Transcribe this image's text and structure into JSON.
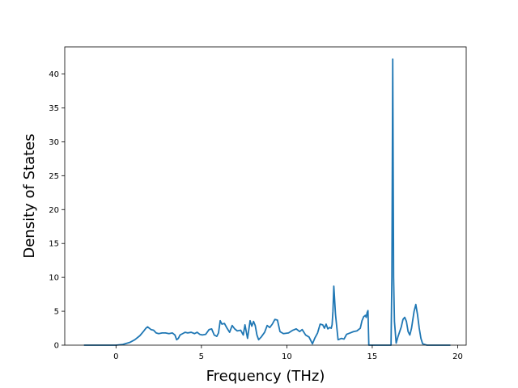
{
  "chart_data": {
    "type": "line",
    "title": "",
    "xlabel": "Frequency (THz)",
    "ylabel": "Density of States",
    "xlim": [
      -3.0,
      20.5
    ],
    "ylim": [
      0,
      44
    ],
    "xticks": [
      0,
      5,
      10,
      15,
      20
    ],
    "yticks": [
      0,
      5,
      10,
      15,
      20,
      25,
      30,
      35,
      40
    ],
    "grid": false,
    "series": [
      {
        "color": "#1f77b4",
        "x": [
          -1.85,
          -1.0,
          0.0,
          0.4,
          0.8,
          1.1,
          1.4,
          1.6,
          1.75,
          1.85,
          1.95,
          2.05,
          2.2,
          2.35,
          2.5,
          2.7,
          2.9,
          3.1,
          3.3,
          3.45,
          3.55,
          3.65,
          3.75,
          3.9,
          4.05,
          4.2,
          4.4,
          4.6,
          4.75,
          4.9,
          5.05,
          5.25,
          5.45,
          5.6,
          5.75,
          5.9,
          6.0,
          6.1,
          6.2,
          6.35,
          6.5,
          6.65,
          6.8,
          6.95,
          7.1,
          7.3,
          7.45,
          7.55,
          7.7,
          7.85,
          7.95,
          8.05,
          8.15,
          8.25,
          8.35,
          8.5,
          8.7,
          8.85,
          9.0,
          9.15,
          9.3,
          9.45,
          9.6,
          9.8,
          10.1,
          10.35,
          10.55,
          10.75,
          10.9,
          11.1,
          11.3,
          11.5,
          11.65,
          11.8,
          11.95,
          12.1,
          12.2,
          12.3,
          12.4,
          12.5,
          12.6,
          12.65,
          12.7,
          12.75,
          12.85,
          13.0,
          13.2,
          13.35,
          13.5,
          13.7,
          13.9,
          14.1,
          14.3,
          14.4,
          14.5,
          14.6,
          14.65,
          14.7,
          14.75,
          14.8,
          15.0,
          15.5,
          16.0,
          16.1,
          16.15,
          16.2,
          16.25,
          16.3,
          16.4,
          16.5,
          16.7,
          16.8,
          16.9,
          17.0,
          17.1,
          17.2,
          17.3,
          17.45,
          17.55,
          17.65,
          17.75,
          17.85,
          17.95,
          18.2,
          18.6,
          19.0,
          19.55
        ],
        "y": [
          0.0,
          0.0,
          0.0,
          0.1,
          0.4,
          0.8,
          1.4,
          2.0,
          2.5,
          2.7,
          2.5,
          2.3,
          2.2,
          1.8,
          1.7,
          1.8,
          1.8,
          1.7,
          1.8,
          1.5,
          0.8,
          1.0,
          1.5,
          1.7,
          1.9,
          1.8,
          1.9,
          1.7,
          1.9,
          1.6,
          1.5,
          1.6,
          2.3,
          2.4,
          1.5,
          1.3,
          1.8,
          3.6,
          3.1,
          3.2,
          2.5,
          1.9,
          2.9,
          2.4,
          2.1,
          2.2,
          1.5,
          3.0,
          1.0,
          3.6,
          2.8,
          3.5,
          2.9,
          1.5,
          0.8,
          1.2,
          1.9,
          2.9,
          2.6,
          3.1,
          3.8,
          3.7,
          2.0,
          1.7,
          1.8,
          2.2,
          2.4,
          2.0,
          2.3,
          1.5,
          1.2,
          0.2,
          1.1,
          1.8,
          3.1,
          3.0,
          2.5,
          3.1,
          2.4,
          2.6,
          2.5,
          3.0,
          5.0,
          8.7,
          4.5,
          0.8,
          1.0,
          0.9,
          1.6,
          1.8,
          2.0,
          2.1,
          2.5,
          3.6,
          4.2,
          4.4,
          4.1,
          4.8,
          5.1,
          0.0,
          0.0,
          0.0,
          0.0,
          0.0,
          10.0,
          42.2,
          10.0,
          3.5,
          0.3,
          1.2,
          2.7,
          3.8,
          4.1,
          3.5,
          2.0,
          1.5,
          2.5,
          5.0,
          6.0,
          4.5,
          2.5,
          1.0,
          0.2,
          0.0,
          0.0,
          0.0,
          0.0
        ]
      }
    ]
  }
}
